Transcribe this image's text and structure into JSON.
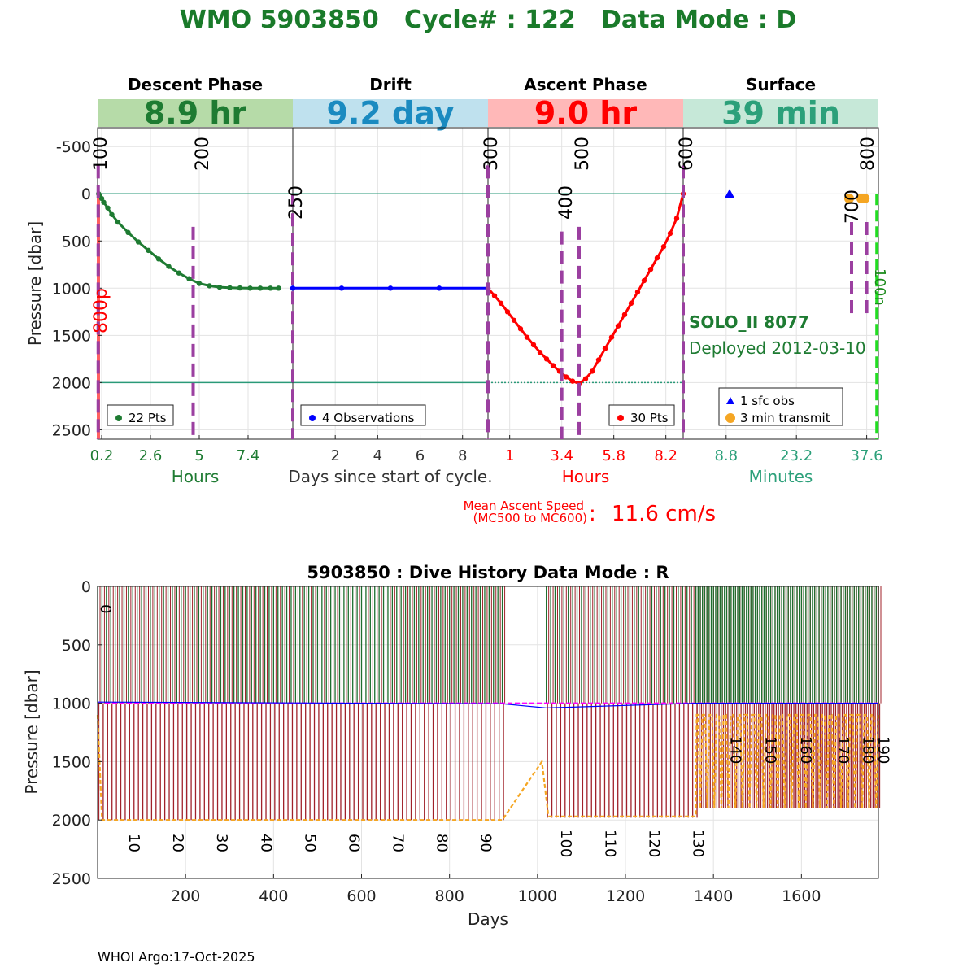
{
  "header": {
    "title": "WMO 5903850   Cycle# : 122   Data Mode : D",
    "footer": "WHOI Argo:17-Oct-2025"
  },
  "colors": {
    "title": "#1a7a2a",
    "descent": "#1e7b32",
    "drift": "#0000ff",
    "ascent": "#ff0000",
    "surface": "#2ca07a",
    "phase_marker": "#9b3fa0",
    "grid": "#e3e3e3",
    "hline": "#2a9a78",
    "orange": "#f5a623",
    "green_dash": "#22dd22",
    "magenta": "#ff00ff",
    "dark_red": "#a0212a",
    "dark_green": "#1e6e2e",
    "descent_band": "#b6dba8",
    "drift_band": "#bfe1ee",
    "ascent_band": "#ffb8b8",
    "surface_band": "#c6e8d8"
  },
  "chart_data": [
    {
      "type": "line",
      "name": "cycle-profile",
      "ylabel": "Pressure [dbar]",
      "ylim": [
        2600,
        -700
      ],
      "yticks": [
        -500,
        0,
        500,
        1000,
        1500,
        2000,
        2500
      ],
      "ytick_labels": [
        "-500",
        "0",
        "500",
        "1000",
        "1500",
        "2000",
        "2500"
      ],
      "hlines": [
        0,
        2000
      ],
      "float_info": {
        "model": "SOLO_II 8077",
        "deployed": "Deployed 2012-03-10",
        "ascent_speed_label_1": "Mean Ascent Speed",
        "ascent_speed_label_2": "(MC500 to MC600)",
        "ascent_speed_colon": ":",
        "ascent_speed_value": "11.6 cm/s"
      },
      "center_xlabel": "Days since start of cycle.",
      "panels": [
        {
          "phase": "Descent Phase",
          "duration": "8.9 hr",
          "unit_label": "Hours",
          "xlim": [
            0,
            9.6
          ],
          "xticks": [
            0.2,
            2.6,
            5,
            7.4
          ],
          "xtick_labels": [
            "0.2",
            "2.6",
            "5",
            "7.4"
          ],
          "markers": [
            {
              "x": 0.03,
              "label": "100",
              "extent": [
                -300,
                2600
              ]
            },
            {
              "x": 4.7,
              "label": "200",
              "extent": [
                350,
                2600
              ]
            }
          ],
          "side_label": "800p",
          "legend": "22 Pts",
          "series": [
            {
              "name": "descent",
              "x": [
                0.05,
                0.1,
                0.2,
                0.3,
                0.5,
                0.7,
                1.0,
                1.5,
                2.0,
                2.5,
                3.0,
                3.5,
                4.0,
                4.5,
                5.0,
                5.5,
                6.0,
                6.5,
                7.0,
                7.5,
                8.0,
                8.5,
                8.9
              ],
              "y": [
                0,
                20,
                50,
                90,
                150,
                220,
                300,
                410,
                510,
                600,
                690,
                770,
                840,
                900,
                950,
                975,
                990,
                995,
                998,
                1000,
                1000,
                1000,
                1000
              ]
            }
          ]
        },
        {
          "phase": "Drift",
          "duration": "9.2 day",
          "unit_label": "",
          "xlim": [
            0,
            9.2
          ],
          "xticks": [
            2,
            4,
            6,
            8
          ],
          "xtick_labels": [
            "2",
            "4",
            "6",
            "8"
          ],
          "markers": [
            {
              "x": 0,
              "label": "250",
              "extent": [
                0,
                2600
              ]
            }
          ],
          "legend": "4 Observations",
          "series": [
            {
              "name": "drift",
              "x": [
                0,
                2.3,
                4.6,
                6.9,
                9.2
              ],
              "y": [
                1000,
                1000,
                1000,
                1000,
                1000
              ]
            }
          ]
        },
        {
          "phase": "Ascent Phase",
          "duration": "9.0 hr",
          "unit_label": "Hours",
          "xlim": [
            0,
            9.0
          ],
          "xticks": [
            1,
            3.4,
            5.8,
            8.2
          ],
          "xtick_labels": [
            "1",
            "3.4",
            "5.8",
            "8.2"
          ],
          "markers": [
            {
              "x": 0,
              "label": "300",
              "extent": [
                -300,
                2600
              ]
            },
            {
              "x": 3.4,
              "label": "400",
              "extent": [
                400,
                2600
              ]
            },
            {
              "x": 4.2,
              "label": "500",
              "extent": [
                350,
                2600
              ]
            },
            {
              "x": 9.0,
              "label": "600",
              "extent": [
                -300,
                2600
              ]
            }
          ],
          "legend": "30 Pts",
          "series": [
            {
              "name": "ascent",
              "x": [
                0,
                0.3,
                0.6,
                0.9,
                1.2,
                1.5,
                1.8,
                2.1,
                2.4,
                2.7,
                3.0,
                3.3,
                3.6,
                3.9,
                4.2,
                4.5,
                4.8,
                5.1,
                5.4,
                5.7,
                6.0,
                6.3,
                6.6,
                6.9,
                7.2,
                7.5,
                7.8,
                8.1,
                8.4,
                8.7,
                9.0
              ],
              "y": [
                1000,
                1080,
                1160,
                1250,
                1340,
                1430,
                1520,
                1600,
                1680,
                1750,
                1820,
                1880,
                1940,
                1985,
                2010,
                1960,
                1880,
                1760,
                1640,
                1520,
                1400,
                1280,
                1160,
                1040,
                920,
                800,
                680,
                560,
                420,
                260,
                0
              ]
            }
          ]
        },
        {
          "phase": "Surface",
          "duration": "39 min",
          "unit_label": "Minutes",
          "xlim": [
            0,
            40
          ],
          "xticks": [
            8.8,
            23.2,
            37.6
          ],
          "xtick_labels": [
            "8.8",
            "23.2",
            "37.6"
          ],
          "markers": [
            {
              "x": 34.5,
              "label": "700",
              "extent": [
                1300,
                300
              ]
            },
            {
              "x": 37.6,
              "label": "800",
              "extent": [
                1300,
                300
              ]
            }
          ],
          "green_marker": {
            "x": 39.7,
            "label": "100n"
          },
          "legend": [
            "1 sfc obs",
            "3 min transmit"
          ],
          "points": [
            {
              "name": "sfc-obs",
              "x": 9.5,
              "y": 0,
              "marker": "triangle"
            },
            {
              "name": "transmit",
              "x": 34.0,
              "y": 50,
              "marker": "circle"
            },
            {
              "name": "transmit",
              "x": 36.5,
              "y": 50,
              "marker": "circle"
            },
            {
              "name": "transmit",
              "x": 37.2,
              "y": 50,
              "marker": "circle"
            }
          ]
        }
      ]
    },
    {
      "type": "line",
      "name": "dive-history",
      "title": "5903850 : Dive History      Data Mode : R",
      "xlabel": "Days",
      "ylabel": "Pressure [dbar]",
      "xlim": [
        0,
        1775
      ],
      "ylim": [
        2500,
        0
      ],
      "xticks": [
        200,
        400,
        600,
        800,
        1000,
        1200,
        1400,
        1600
      ],
      "xtick_labels": [
        "200",
        "400",
        "600",
        "800",
        "1000",
        "1200",
        "1400",
        "1600"
      ],
      "yticks": [
        0,
        500,
        1000,
        1500,
        2000,
        2500
      ],
      "ytick_labels": [
        "0",
        "500",
        "1000",
        "1500",
        "2000",
        "2500"
      ],
      "cycle_labels": [
        {
          "x": 4,
          "text": "0"
        },
        {
          "x": 63,
          "text": "10"
        },
        {
          "x": 163,
          "text": "20"
        },
        {
          "x": 263,
          "text": "30"
        },
        {
          "x": 363,
          "text": "40"
        },
        {
          "x": 463,
          "text": "50"
        },
        {
          "x": 563,
          "text": "60"
        },
        {
          "x": 663,
          "text": "70"
        },
        {
          "x": 763,
          "text": "80"
        },
        {
          "x": 863,
          "text": "90"
        },
        {
          "x": 1045,
          "text": "100"
        },
        {
          "x": 1145,
          "text": "110"
        },
        {
          "x": 1245,
          "text": "120"
        },
        {
          "x": 1345,
          "text": "130"
        },
        {
          "x": 1430,
          "text": "140"
        },
        {
          "x": 1510,
          "text": "150"
        },
        {
          "x": 1590,
          "text": "160"
        },
        {
          "x": 1675,
          "text": "170"
        },
        {
          "x": 1732,
          "text": "180"
        },
        {
          "x": 1767,
          "text": "190"
        }
      ],
      "segments": [
        {
          "x_start": 0,
          "x_end": 920,
          "period": 10,
          "profile_depth": 2000,
          "orange_level": 2000
        },
        {
          "x_start": 1020,
          "x_end": 1360,
          "period": 10,
          "profile_depth": 1980,
          "orange_level": 1970
        },
        {
          "x_start": 1360,
          "x_end": 1775,
          "period": 5,
          "profile_depth": 1900,
          "orange_level": 1100
        }
      ],
      "park_pressure": 1000
    }
  ]
}
